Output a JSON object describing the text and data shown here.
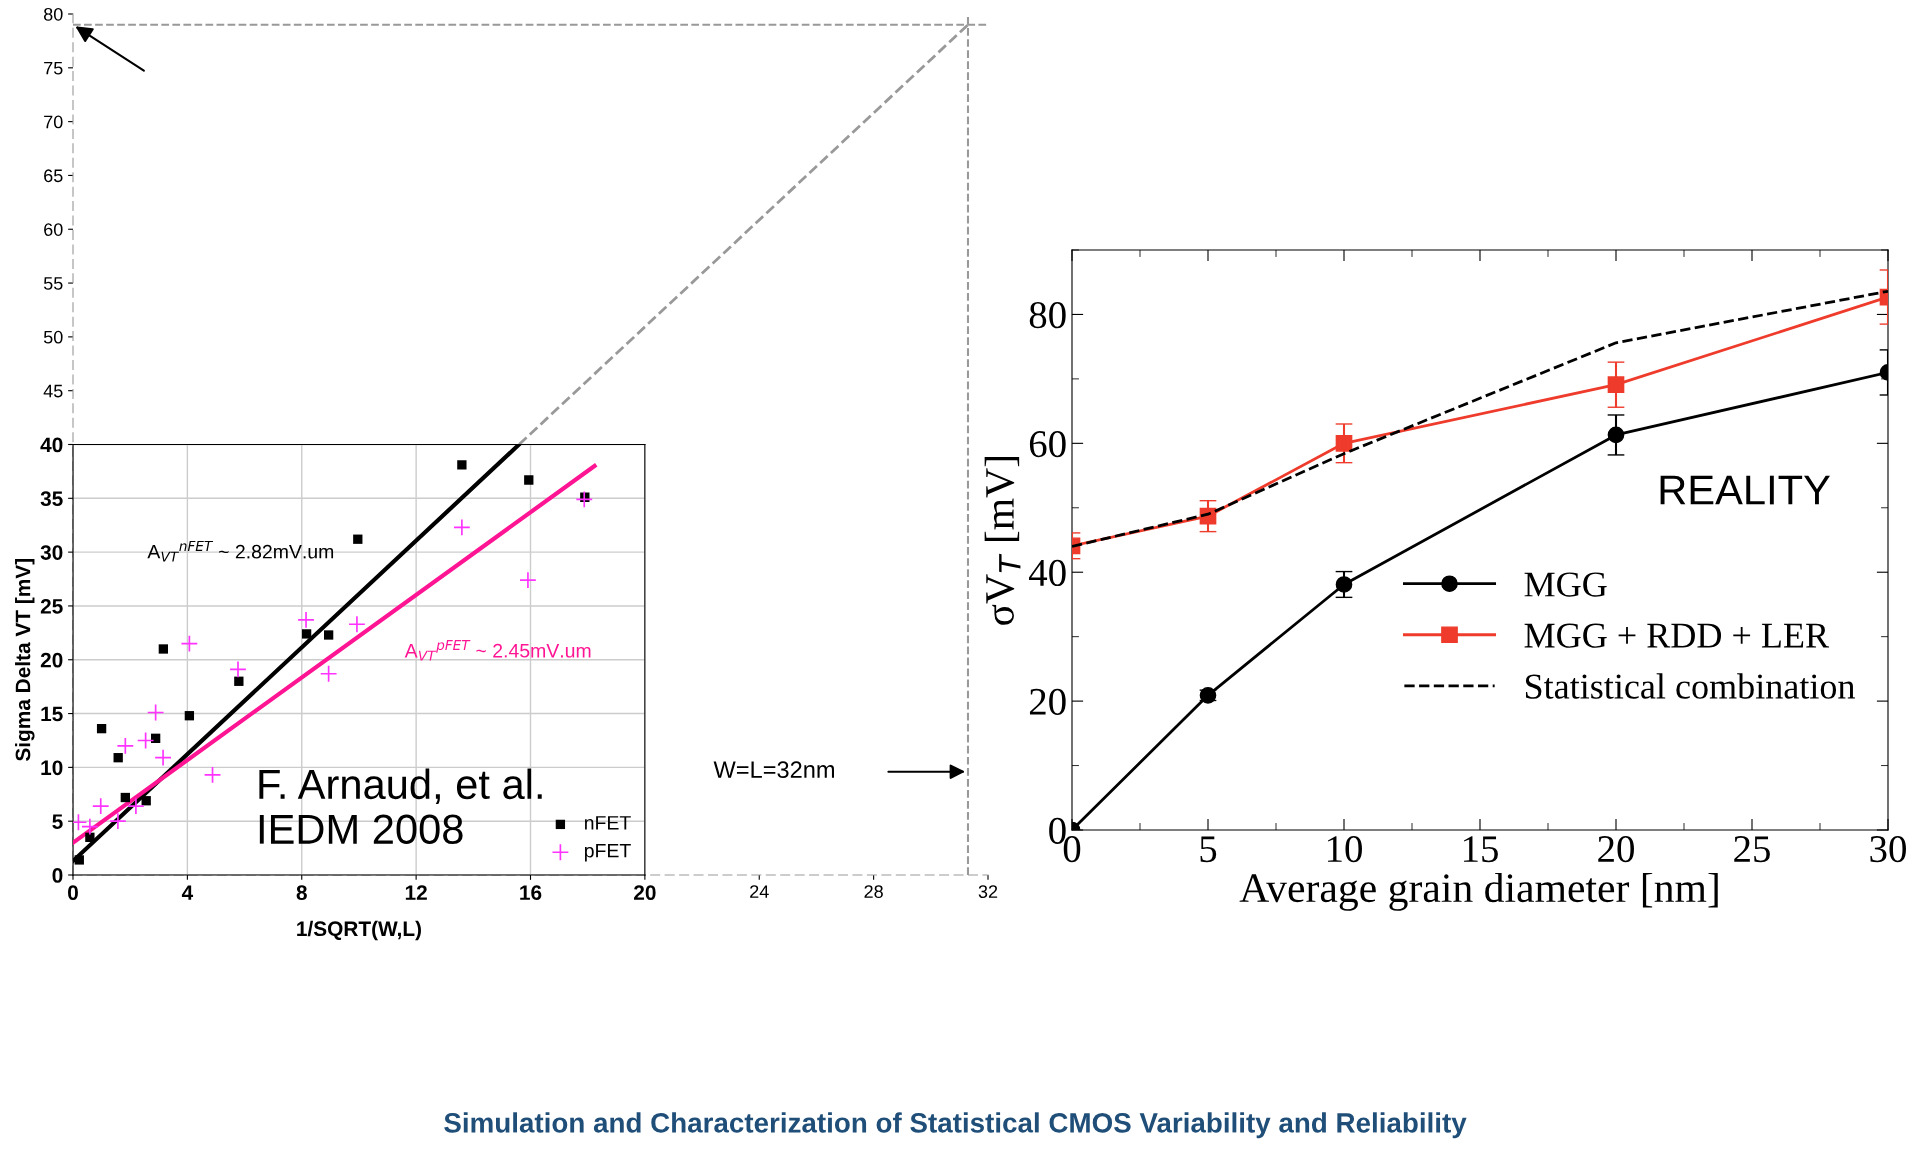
{
  "chart_data": [
    {
      "type": "scatter",
      "xlabel": "1/SQRT(W,L)",
      "ylabel": "Sigma Delta VT [mV]",
      "xlim": [
        0,
        20
      ],
      "ylim": [
        0,
        40
      ],
      "xticks": [
        0,
        4,
        8,
        12,
        16,
        20
      ],
      "yticks": [
        0,
        5,
        10,
        15,
        20,
        25,
        30,
        35,
        40
      ],
      "grid": true,
      "legend": "bottom right",
      "series": [
        {
          "name": "nFET",
          "color": "#000000",
          "marker": "square",
          "x": [
            0.22,
            0.59,
            1.0,
            1.58,
            1.83,
            2.56,
            2.89,
            3.16,
            4.07,
            5.8,
            8.17,
            8.94,
            9.96,
            13.6,
            15.94,
            17.9
          ],
          "values": [
            1.4,
            3.5,
            13.6,
            10.9,
            7.2,
            6.9,
            12.7,
            21.0,
            14.8,
            18.0,
            22.4,
            22.3,
            31.2,
            38.1,
            36.7,
            35.1
          ]
        },
        {
          "name": "pFET",
          "color": "#ff33ff",
          "marker": "cross",
          "x": [
            0.19,
            0.59,
            0.97,
            1.57,
            1.83,
            2.2,
            2.54,
            2.89,
            3.15,
            4.07,
            4.88,
            5.77,
            8.15,
            8.94,
            9.93,
            13.6,
            15.91,
            17.88
          ],
          "values": [
            4.9,
            4.5,
            6.4,
            5.0,
            12.0,
            6.4,
            12.5,
            15.1,
            10.9,
            21.5,
            9.3,
            19.1,
            23.7,
            18.7,
            23.3,
            32.3,
            27.4,
            34.9
          ]
        },
        {
          "type": "line",
          "color": "#000000",
          "x": [
            0,
            15.6
          ],
          "values": [
            1.3,
            40
          ]
        },
        {
          "type": "line",
          "color": "#ff1493",
          "x": [
            0,
            18.24
          ],
          "values": [
            3.0,
            38.0
          ]
        }
      ],
      "annotations": [
        "A$_{VT}$$^{nFET}$ ~ 2.82mV.um",
        "A$_{VT}$$^{pFET}$ ~ 2.45mV.um",
        "F. Arnaud, et al.\nIEDM 2008",
        "Simulation and Characterization of Statistical CMOS Variability and Reliability"
      ]
    },
    {
      "type": "line",
      "xlim": [
        0,
        32
      ],
      "ylim": [
        0,
        80
      ],
      "xticks": [
        24,
        28,
        32
      ],
      "yticks": [
        45,
        50,
        55,
        60,
        65,
        70,
        75,
        80
      ],
      "series": [
        {
          "color": "#999999",
          "line_style": "dashed",
          "x": [
            15.6,
            31.3
          ],
          "values": [
            40,
            79
          ]
        }
      ],
      "ref_lines": [
        {
          "axis": "y",
          "value": 79,
          "color": "#999999",
          "line_style": "dashed"
        },
        {
          "axis": "x",
          "value": 31.3,
          "color": "#999999",
          "line_style": "dashed"
        }
      ],
      "annotations": [
        "W=L=32nm"
      ]
    },
    {
      "type": "line",
      "xlabel": "Average grain diameter [nm]",
      "ylabel": "σV$_{T}$ [mV]",
      "xlim": [
        0,
        30
      ],
      "ylim": [
        0,
        90
      ],
      "xticks": [
        0,
        5,
        10,
        15,
        20,
        25,
        30
      ],
      "yticks": [
        0,
        20,
        40,
        60,
        80
      ],
      "legend": "right",
      "x": [
        0,
        5,
        10,
        20,
        30
      ],
      "series": [
        {
          "name": "MGG",
          "color": "#000000",
          "marker": "circle",
          "values": [
            0,
            20.9,
            38.1,
            61.3,
            71.0
          ],
          "errors": [
            null,
            0.8,
            2.0,
            3.1,
            3.5
          ]
        },
        {
          "name": "MGG + RDD + LER",
          "color": "#ee3b2b",
          "marker": "square",
          "values": [
            44.1,
            48.7,
            60.0,
            69.1,
            82.7
          ],
          "errors": [
            2.0,
            2.4,
            3.0,
            3.5,
            4.2
          ]
        },
        {
          "name": "Statistical combination",
          "color": "#000000",
          "marker": "none",
          "line_style": "dashed",
          "values": [
            44.0,
            49.0,
            58.4,
            75.6,
            83.6
          ]
        }
      ],
      "annotations": [
        "REALITY"
      ]
    }
  ]
}
